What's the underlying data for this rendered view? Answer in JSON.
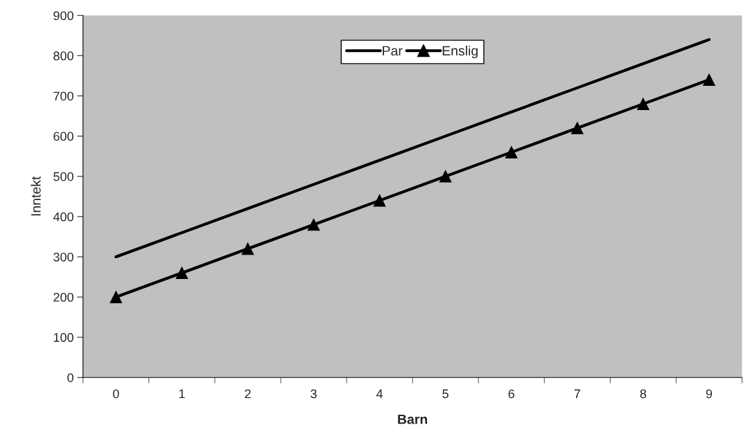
{
  "chart_data": {
    "type": "line",
    "xlabel": "Barn",
    "ylabel": "Inntekt",
    "categories": [
      "0",
      "1",
      "2",
      "3",
      "4",
      "5",
      "6",
      "7",
      "8",
      "9"
    ],
    "series": [
      {
        "name": "Par",
        "color": "#000000",
        "marker": "none",
        "values": [
          300,
          360,
          420,
          480,
          540,
          600,
          660,
          720,
          780,
          840
        ]
      },
      {
        "name": "Enslig",
        "color": "#000000",
        "marker": "triangle",
        "values": [
          200,
          260,
          320,
          380,
          440,
          500,
          560,
          620,
          680,
          740
        ]
      }
    ],
    "ylim": [
      0,
      900
    ],
    "yticks": [
      0,
      100,
      200,
      300,
      400,
      500,
      600,
      700,
      800,
      900
    ],
    "grid": false,
    "legend": "top",
    "line_style": "solid"
  }
}
